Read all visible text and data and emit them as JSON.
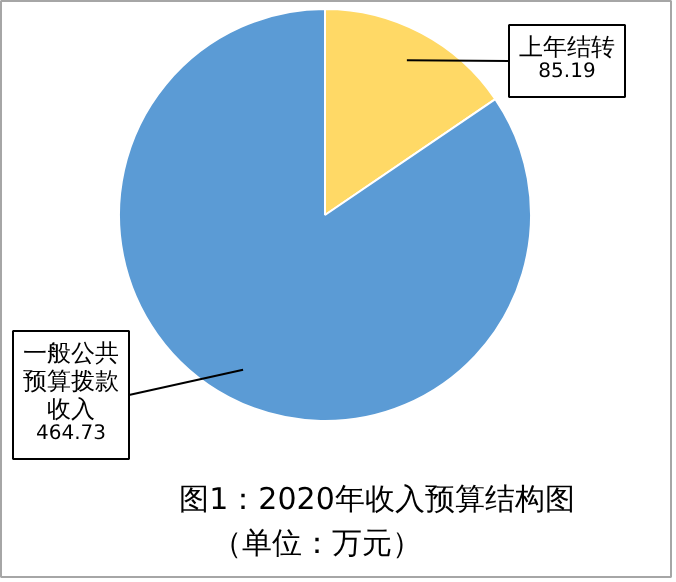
{
  "chart_data": {
    "type": "pie",
    "title": "图1：2020年收入预算结构图",
    "subtitle": "（单位：万元）",
    "categories": [
      "上年结转",
      "一般公共预算拨款收入"
    ],
    "values": [
      85.19,
      464.73
    ],
    "colors": [
      "#ffd966",
      "#5b9bd5"
    ],
    "data_labels": true
  }
}
